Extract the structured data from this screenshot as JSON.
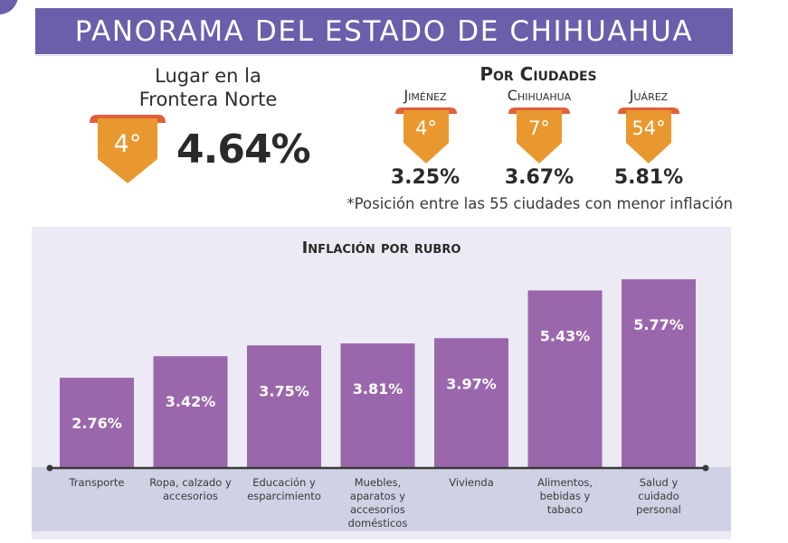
{
  "banner": {
    "title": "PANORAMA DEL ESTADO DE CHIHUAHUA"
  },
  "colors": {
    "banner": "#6a5fab",
    "bar": "#9b67ac",
    "badge": "#e8982e",
    "badge_top": "#e0603a",
    "panel": "#ecebf5",
    "band": "#cfd1e4"
  },
  "frontera": {
    "title_line1": "Lugar en la",
    "title_line2": "Frontera Norte",
    "rank": "4°",
    "inflation": "4.64%"
  },
  "ciudades": {
    "title": "Por Ciudades",
    "cities": [
      {
        "name": "Jiménez",
        "rank": "4°",
        "inflation": "3.25%"
      },
      {
        "name": "Chihuahua",
        "rank": "7°",
        "inflation": "3.67%"
      },
      {
        "name": "Juárez",
        "rank": "54°",
        "inflation": "5.81%"
      }
    ],
    "footnote": "*Posición entre las 55 ciudades con menor inflación"
  },
  "chart_data": {
    "type": "bar",
    "title": "Inflación por rubro",
    "xlabel": "",
    "ylabel": "",
    "ylim": [
      0,
      6
    ],
    "grid": false,
    "categories": [
      "Transporte",
      "Ropa, calzado y accesorios",
      "Educación y esparcimiento",
      "Muebles, aparatos y accesorios domésticos",
      "Vivienda",
      "Alimentos, bebidas y tabaco",
      "Salud y cuidado personal"
    ],
    "category_lines": [
      [
        "Transporte"
      ],
      [
        "Ropa, calzado y",
        "accesorios"
      ],
      [
        "Educación y",
        "esparcimiento"
      ],
      [
        "Muebles,",
        "aparatos y",
        "accesorios",
        "domésticos"
      ],
      [
        "Vivienda"
      ],
      [
        "Alimentos,",
        "bebidas y",
        "tabaco"
      ],
      [
        "Salud y",
        "cuidado",
        "personal"
      ]
    ],
    "values": [
      2.76,
      3.42,
      3.75,
      3.81,
      3.97,
      5.43,
      5.77
    ],
    "data_labels": [
      "2.76%",
      "3.42%",
      "3.75%",
      "3.81%",
      "3.97%",
      "5.43%",
      "5.77%"
    ]
  }
}
